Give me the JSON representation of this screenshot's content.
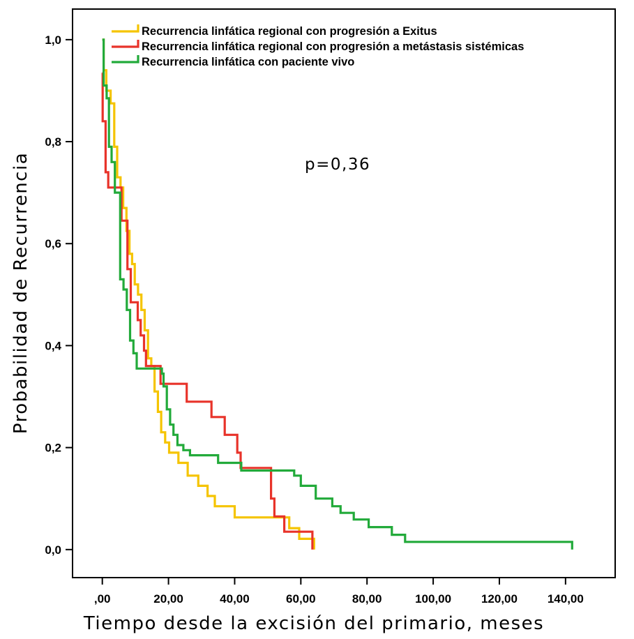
{
  "chart_data": {
    "type": "line",
    "step": true,
    "title": "",
    "xlabel": "Tiempo desde la excisión del primario, meses",
    "ylabel": "Probabilidad de Recurrencia",
    "xlim": [
      -9,
      155
    ],
    "ylim": [
      -0.055,
      1.06
    ],
    "x_ticks": [
      0,
      20,
      40,
      60,
      80,
      100,
      120,
      140
    ],
    "x_tick_labels": [
      ",00",
      "20,00",
      "40,00",
      "60,00",
      "80,00",
      "100,00",
      "120,00",
      "140,00"
    ],
    "y_ticks": [
      0,
      0.2,
      0.4,
      0.6,
      0.8,
      1.0
    ],
    "y_tick_labels": [
      "0,0",
      "0,2",
      "0,4",
      "0,6",
      "0,8",
      "1,0"
    ],
    "grid": false,
    "legend_position": "top-left",
    "annotation": "p=0,36",
    "series": [
      {
        "name": "Recurrencia linfática regional con progresión a Exitus",
        "color": "#f5c400",
        "points": [
          [
            0,
            1.0
          ],
          [
            0.4,
            0.94
          ],
          [
            1.2,
            0.9
          ],
          [
            2.5,
            0.875
          ],
          [
            3.6,
            0.79
          ],
          [
            4.5,
            0.73
          ],
          [
            5.5,
            0.71
          ],
          [
            6.3,
            0.67
          ],
          [
            7.3,
            0.625
          ],
          [
            8.2,
            0.58
          ],
          [
            9.0,
            0.56
          ],
          [
            9.8,
            0.52
          ],
          [
            10.8,
            0.5
          ],
          [
            11.8,
            0.47
          ],
          [
            12.8,
            0.43
          ],
          [
            13.8,
            0.375
          ],
          [
            14.8,
            0.36
          ],
          [
            15.8,
            0.31
          ],
          [
            16.8,
            0.27
          ],
          [
            17.8,
            0.23
          ],
          [
            19.0,
            0.21
          ],
          [
            20.2,
            0.19
          ],
          [
            23.0,
            0.17
          ],
          [
            25.8,
            0.145
          ],
          [
            29.0,
            0.125
          ],
          [
            31.8,
            0.105
          ],
          [
            34.0,
            0.085
          ],
          [
            40.0,
            0.063
          ],
          [
            50.5,
            0.063
          ],
          [
            55.0,
            0.063
          ],
          [
            56.5,
            0.042
          ],
          [
            59.5,
            0.021
          ],
          [
            64.0,
            0.021
          ],
          [
            64.0,
            0.0
          ]
        ]
      },
      {
        "name": "Recurrencia linfática regional con progresión a metástasis sistémicas",
        "color": "#e8332a",
        "points": [
          [
            0,
            0.935
          ],
          [
            0.1,
            0.84
          ],
          [
            1.0,
            0.74
          ],
          [
            1.8,
            0.71
          ],
          [
            4.0,
            0.71
          ],
          [
            4.8,
            0.71
          ],
          [
            5.8,
            0.645
          ],
          [
            7.6,
            0.55
          ],
          [
            8.6,
            0.485
          ],
          [
            10.7,
            0.45
          ],
          [
            11.6,
            0.42
          ],
          [
            12.6,
            0.39
          ],
          [
            13.2,
            0.36
          ],
          [
            17.0,
            0.36
          ],
          [
            17.6,
            0.325
          ],
          [
            25.5,
            0.29
          ],
          [
            33.0,
            0.26
          ],
          [
            37.0,
            0.225
          ],
          [
            40.8,
            0.19
          ],
          [
            41.8,
            0.16
          ],
          [
            51.0,
            0.16
          ],
          [
            51.0,
            0.1
          ],
          [
            52.0,
            0.065
          ],
          [
            55.0,
            0.035
          ],
          [
            63.5,
            0.035
          ],
          [
            63.5,
            0.0
          ]
        ]
      },
      {
        "name": "Recurrencia linfática con paciente vivo",
        "color": "#22aa3a",
        "points": [
          [
            0,
            1.0
          ],
          [
            0.4,
            0.91
          ],
          [
            1.3,
            0.885
          ],
          [
            2.0,
            0.79
          ],
          [
            2.8,
            0.76
          ],
          [
            3.8,
            0.7
          ],
          [
            5.4,
            0.53
          ],
          [
            6.4,
            0.51
          ],
          [
            7.4,
            0.47
          ],
          [
            8.4,
            0.41
          ],
          [
            9.4,
            0.385
          ],
          [
            10.4,
            0.355
          ],
          [
            18.0,
            0.345
          ],
          [
            18.5,
            0.32
          ],
          [
            19.5,
            0.275
          ],
          [
            20.5,
            0.245
          ],
          [
            21.5,
            0.225
          ],
          [
            22.7,
            0.205
          ],
          [
            24.5,
            0.195
          ],
          [
            26.5,
            0.185
          ],
          [
            35.0,
            0.17
          ],
          [
            42.0,
            0.155
          ],
          [
            58.0,
            0.145
          ],
          [
            60.0,
            0.125
          ],
          [
            64.5,
            0.1
          ],
          [
            69.5,
            0.085
          ],
          [
            72.0,
            0.072
          ],
          [
            76.0,
            0.059
          ],
          [
            80.5,
            0.044
          ],
          [
            87.5,
            0.029
          ],
          [
            91.5,
            0.015
          ],
          [
            142.0,
            0.015
          ],
          [
            142.0,
            0.0
          ]
        ]
      }
    ]
  }
}
